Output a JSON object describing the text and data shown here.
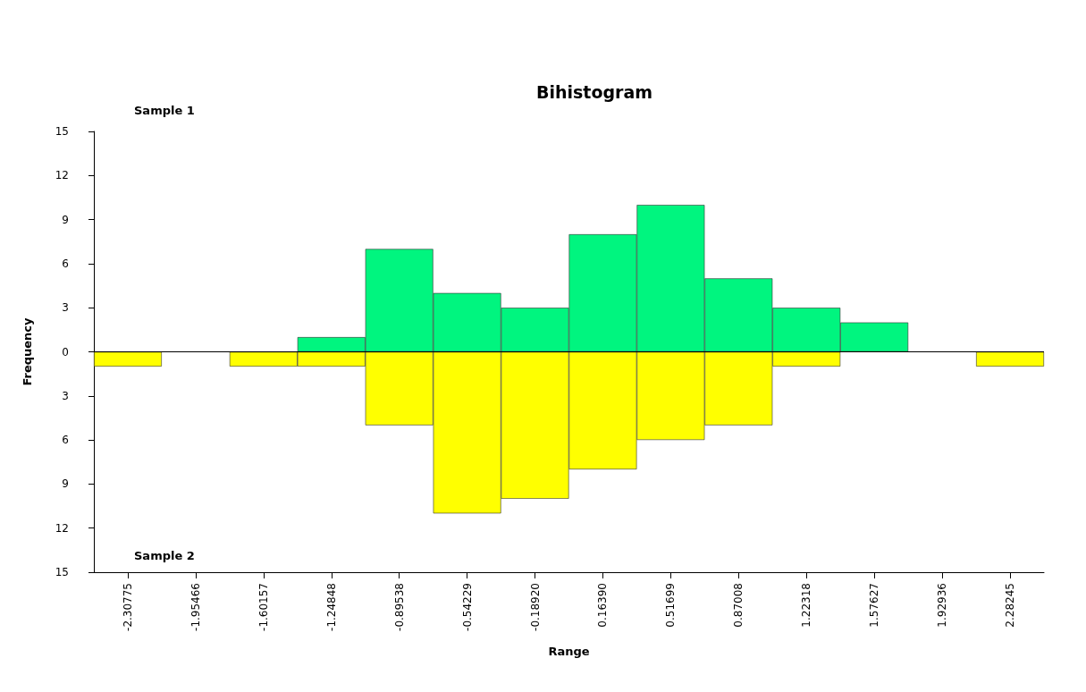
{
  "chart_data": {
    "type": "bar",
    "title": "Bihistogram",
    "xlabel": "Range",
    "ylabel": "Frequency",
    "annotations": [
      "Sample 1",
      "Sample 2"
    ],
    "categories": [
      "-2.30775",
      "-1.95466",
      "-1.60157",
      "-1.24848",
      "-0.89538",
      "-0.54229",
      "-0.18920",
      "0.16390",
      "0.51699",
      "0.87008",
      "1.22318",
      "1.57627",
      "1.92936",
      "2.28245"
    ],
    "series": [
      {
        "color": "#00f57f",
        "values": [
          0,
          0,
          0,
          1,
          7,
          4,
          3,
          8,
          10,
          5,
          3,
          2,
          0,
          0
        ]
      },
      {
        "color": "#ffff00",
        "values": [
          -1,
          0,
          -1,
          -1,
          -5,
          -11,
          -10,
          -8,
          -6,
          -5,
          -1,
          0,
          0,
          -1
        ]
      }
    ],
    "ylim": [
      -15,
      15
    ],
    "yticks": [
      {
        "value": -15,
        "label": "15"
      },
      {
        "value": -12,
        "label": "12"
      },
      {
        "value": -9,
        "label": "9"
      },
      {
        "value": -6,
        "label": "6"
      },
      {
        "value": -3,
        "label": "3"
      },
      0,
      3,
      6,
      9,
      12,
      15
    ],
    "stacked": true,
    "ref_lines": [
      {
        "axis": "y",
        "value": 0,
        "color": "#000000"
      }
    ]
  }
}
